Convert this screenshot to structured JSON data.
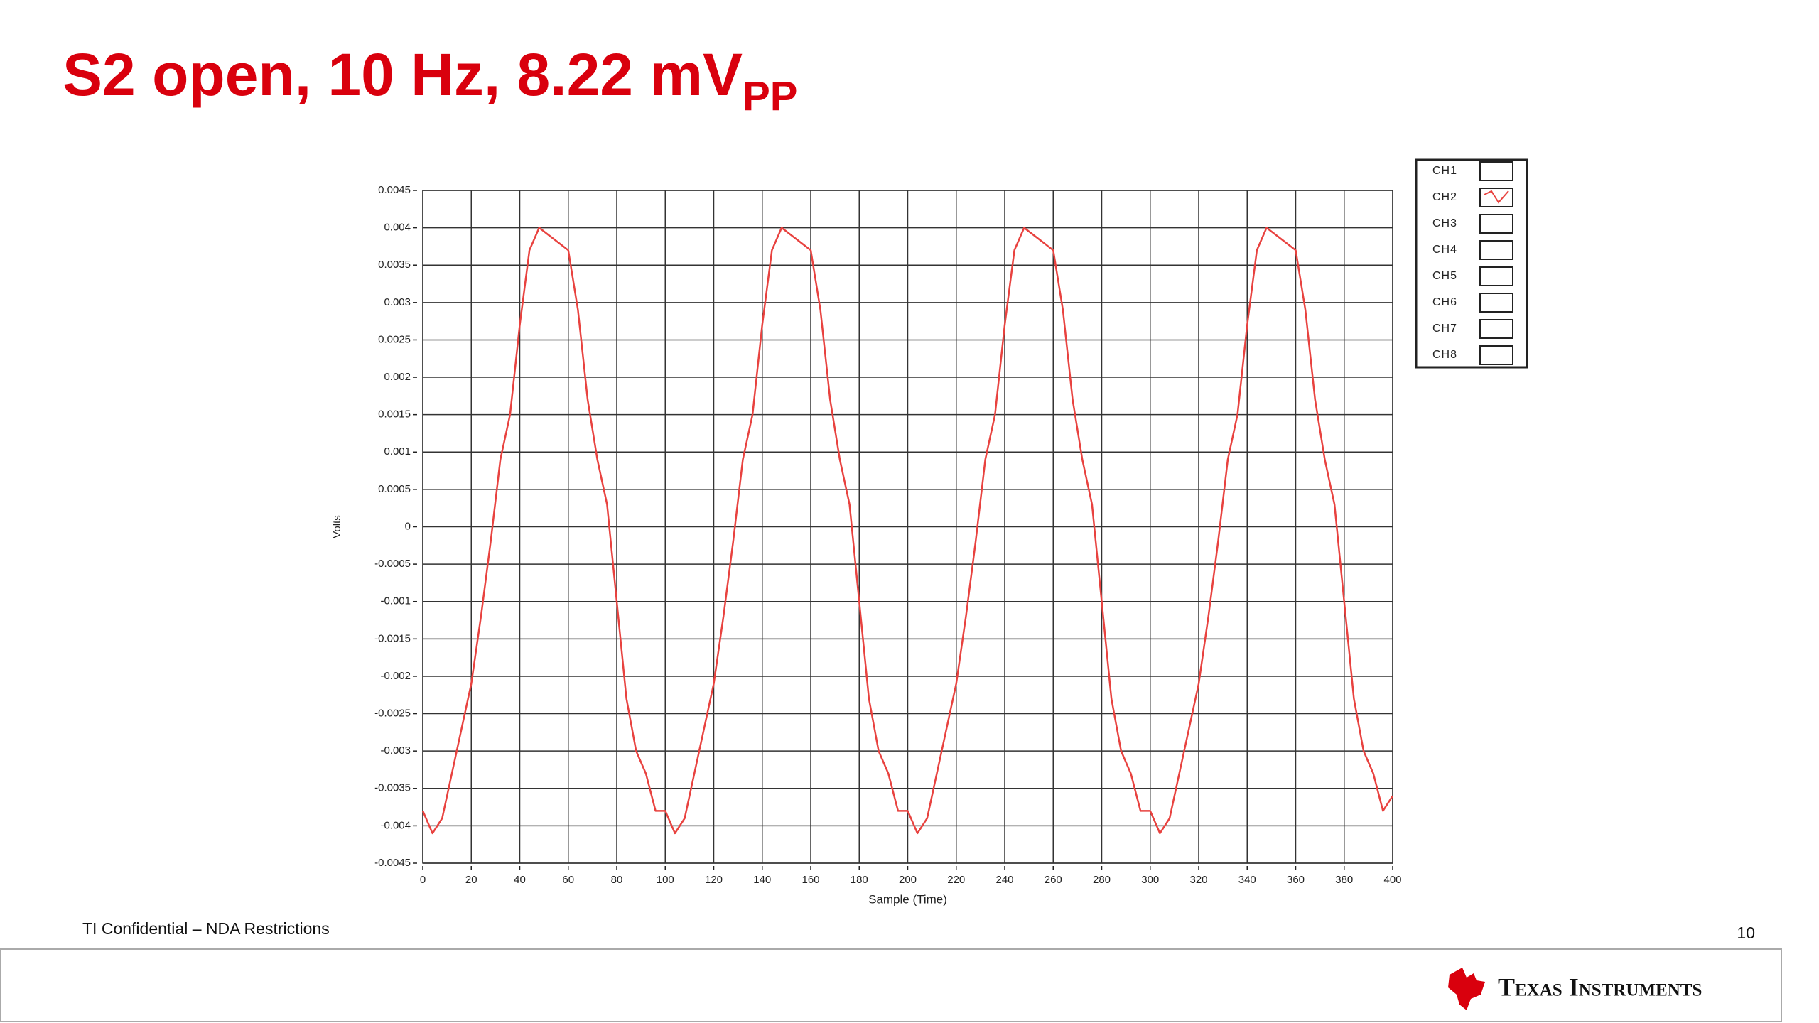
{
  "chart_data": {
    "type": "line",
    "title": "S2 open, 10 Hz, 8.22 mV",
    "title_subscript": "PP",
    "xlabel": "Sample (Time)",
    "ylabel": "Volts",
    "x": [
      0,
      4,
      8,
      12,
      16,
      20,
      24,
      28,
      32,
      36,
      40,
      44,
      48,
      52,
      56,
      60,
      64,
      68,
      72,
      76,
      80,
      84,
      88,
      92,
      96,
      100,
      104,
      108,
      112,
      116,
      120,
      124,
      128,
      132,
      136,
      140,
      144,
      148,
      152,
      156,
      160,
      164,
      168,
      172,
      176,
      180,
      184,
      188,
      192,
      196,
      200,
      204,
      208,
      212,
      216,
      220,
      224,
      228,
      232,
      236,
      240,
      244,
      248,
      252,
      256,
      260,
      264,
      268,
      272,
      276,
      280,
      284,
      288,
      292,
      296,
      300,
      304,
      308,
      312,
      316,
      320,
      324,
      328,
      332,
      336,
      340,
      344,
      348,
      352,
      356,
      360,
      364,
      368,
      372,
      376,
      380,
      384,
      388,
      392,
      396,
      400
    ],
    "series": [
      {
        "name": "CH2",
        "color": "#e8423f",
        "values": [
          -0.0038,
          -0.0041,
          -0.0039,
          -0.0033,
          -0.0027,
          -0.0021,
          -0.0012,
          -0.0002,
          0.0009,
          0.0015,
          0.0027,
          0.0037,
          0.004,
          0.0039,
          0.0038,
          0.0037,
          0.0029,
          0.0017,
          0.0009,
          0.0003,
          -0.001,
          -0.0023,
          -0.003,
          -0.0033,
          -0.0038,
          -0.0038,
          -0.0041,
          -0.0039,
          -0.0033,
          -0.0027,
          -0.0021,
          -0.0012,
          -0.0002,
          0.0009,
          0.0015,
          0.0027,
          0.0037,
          0.004,
          0.0039,
          0.0038,
          0.0037,
          0.0029,
          0.0017,
          0.0009,
          0.0003,
          -0.001,
          -0.0023,
          -0.003,
          -0.0033,
          -0.0038,
          -0.0038,
          -0.0041,
          -0.0039,
          -0.0033,
          -0.0027,
          -0.0021,
          -0.0012,
          -0.0002,
          0.0009,
          0.0015,
          0.0027,
          0.0037,
          0.004,
          0.0039,
          0.0038,
          0.0037,
          0.0029,
          0.0017,
          0.0009,
          0.0003,
          -0.001,
          -0.0023,
          -0.003,
          -0.0033,
          -0.0038,
          -0.0038,
          -0.0041,
          -0.0039,
          -0.0033,
          -0.0027,
          -0.0021,
          -0.0012,
          -0.0002,
          0.0009,
          0.0015,
          0.0027,
          0.0037,
          0.004,
          0.0039,
          0.0038,
          0.0037,
          0.0029,
          0.0017,
          0.0009,
          0.0003,
          -0.001,
          -0.0023,
          -0.003,
          -0.0033,
          -0.0038,
          -0.0036
        ]
      }
    ],
    "legend": [
      "CH1",
      "CH2",
      "CH3",
      "CH4",
      "CH5",
      "CH6",
      "CH7",
      "CH8"
    ],
    "xlim": [
      0,
      400
    ],
    "xticks": [
      0,
      20,
      40,
      60,
      80,
      100,
      120,
      140,
      160,
      180,
      200,
      220,
      240,
      260,
      280,
      300,
      320,
      340,
      360,
      380,
      400
    ],
    "ylim": [
      -0.0045,
      0.0045
    ],
    "yticks": [
      0.0045,
      0.004,
      0.0035,
      0.003,
      0.0025,
      0.002,
      0.0015,
      0.001,
      0.0005,
      0,
      -0.0005,
      -0.001,
      -0.0015,
      -0.002,
      -0.0025,
      -0.003,
      -0.0035,
      -0.004,
      -0.0045
    ],
    "grid": true
  },
  "footer": {
    "confidential": "TI Confidential – NDA Restrictions",
    "page": "10",
    "brand": "Texas Instruments"
  }
}
